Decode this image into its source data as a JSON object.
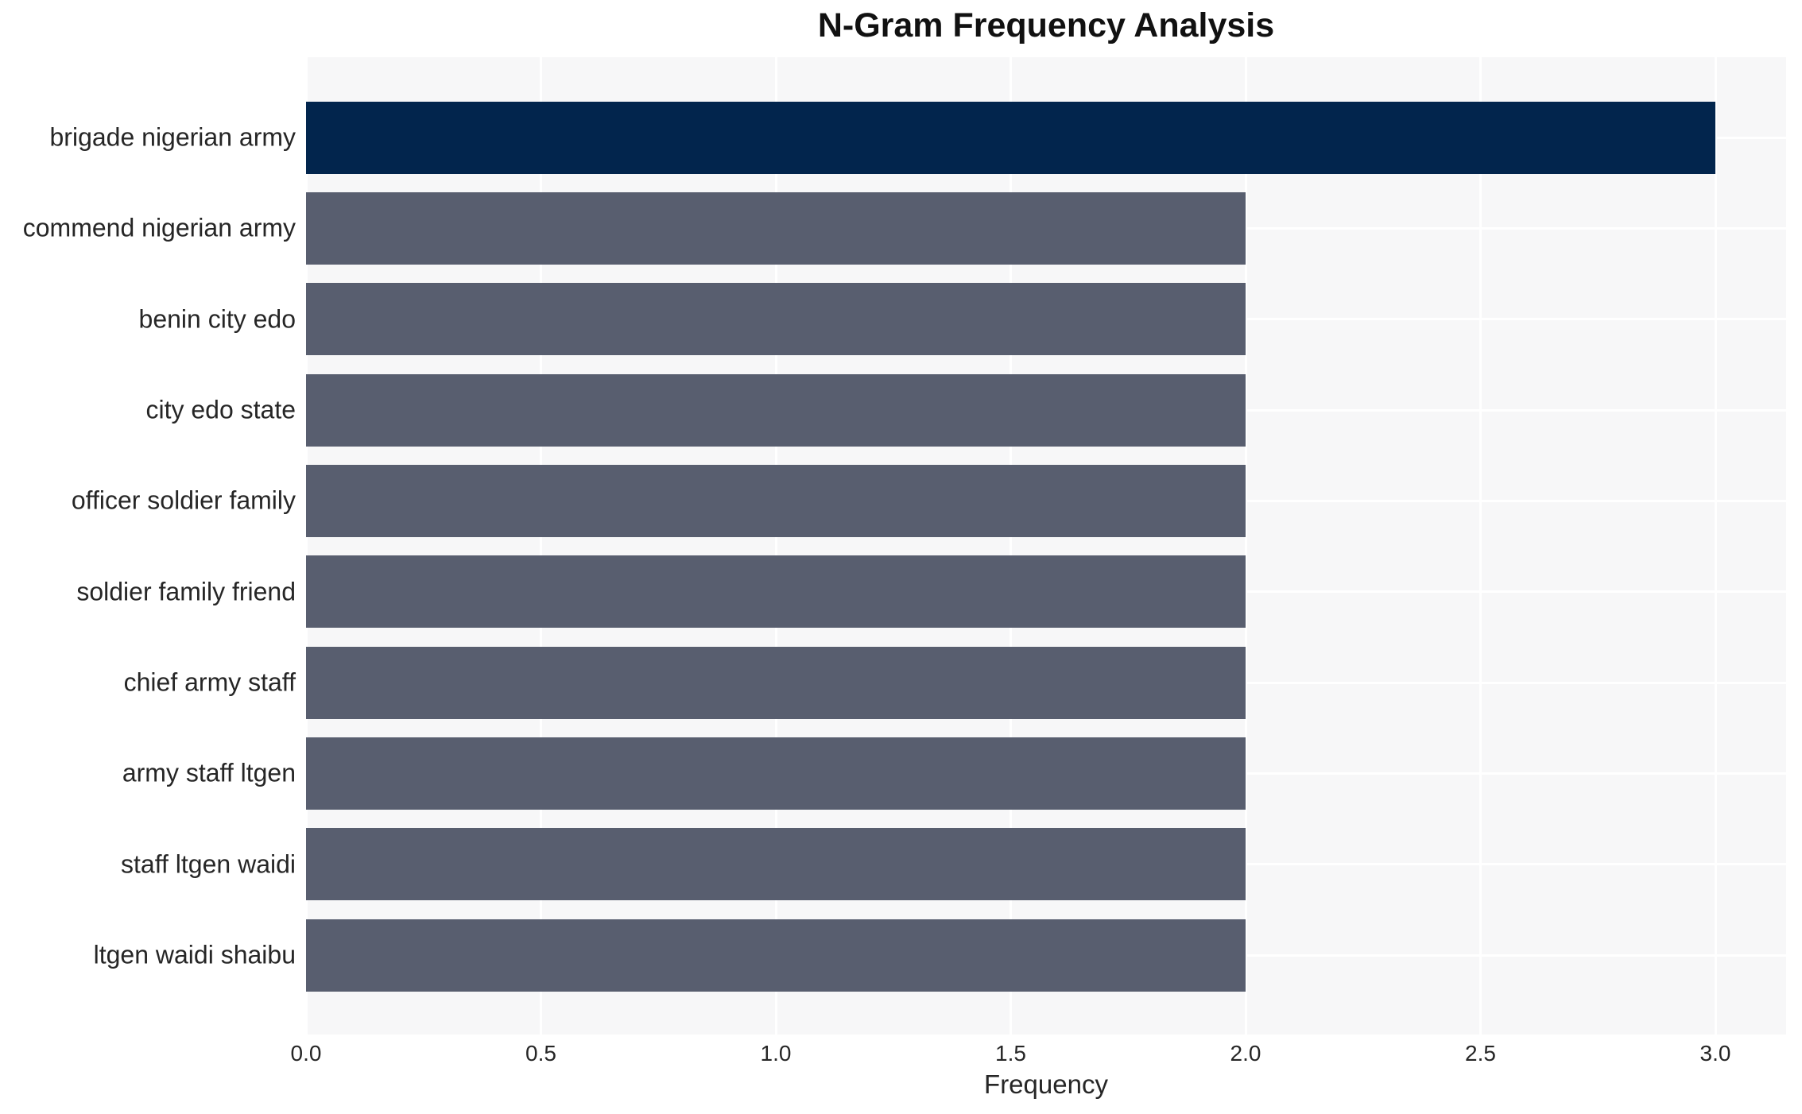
{
  "chart_data": {
    "type": "bar",
    "orientation": "horizontal",
    "title": "N-Gram Frequency Analysis",
    "xlabel": "Frequency",
    "ylabel": "",
    "categories": [
      "brigade nigerian army",
      "commend nigerian army",
      "benin city edo",
      "city edo state",
      "officer soldier family",
      "soldier family friend",
      "chief army staff",
      "army staff ltgen",
      "staff ltgen waidi",
      "ltgen waidi shaibu"
    ],
    "values": [
      3,
      2,
      2,
      2,
      2,
      2,
      2,
      2,
      2,
      2
    ],
    "bar_colors": [
      "#02254d",
      "#585e6f",
      "#585e6f",
      "#585e6f",
      "#585e6f",
      "#585e6f",
      "#585e6f",
      "#585e6f",
      "#585e6f",
      "#585e6f"
    ],
    "xlim": [
      0,
      3.15
    ],
    "xticks": [
      0,
      0.5,
      1,
      1.5,
      2,
      2.5,
      3
    ],
    "xtick_labels": [
      "0.0",
      "0.5",
      "1.0",
      "1.5",
      "2.0",
      "2.5",
      "3.0"
    ],
    "grid": true,
    "legend": null,
    "colors": {
      "highlight_bar": "#02254d",
      "default_bar": "#585e6f",
      "plot_background": "#f7f7f8",
      "gridline": "#ffffff",
      "text": "#262626",
      "title_text": "#111111",
      "page_background": "#ffffff"
    }
  }
}
